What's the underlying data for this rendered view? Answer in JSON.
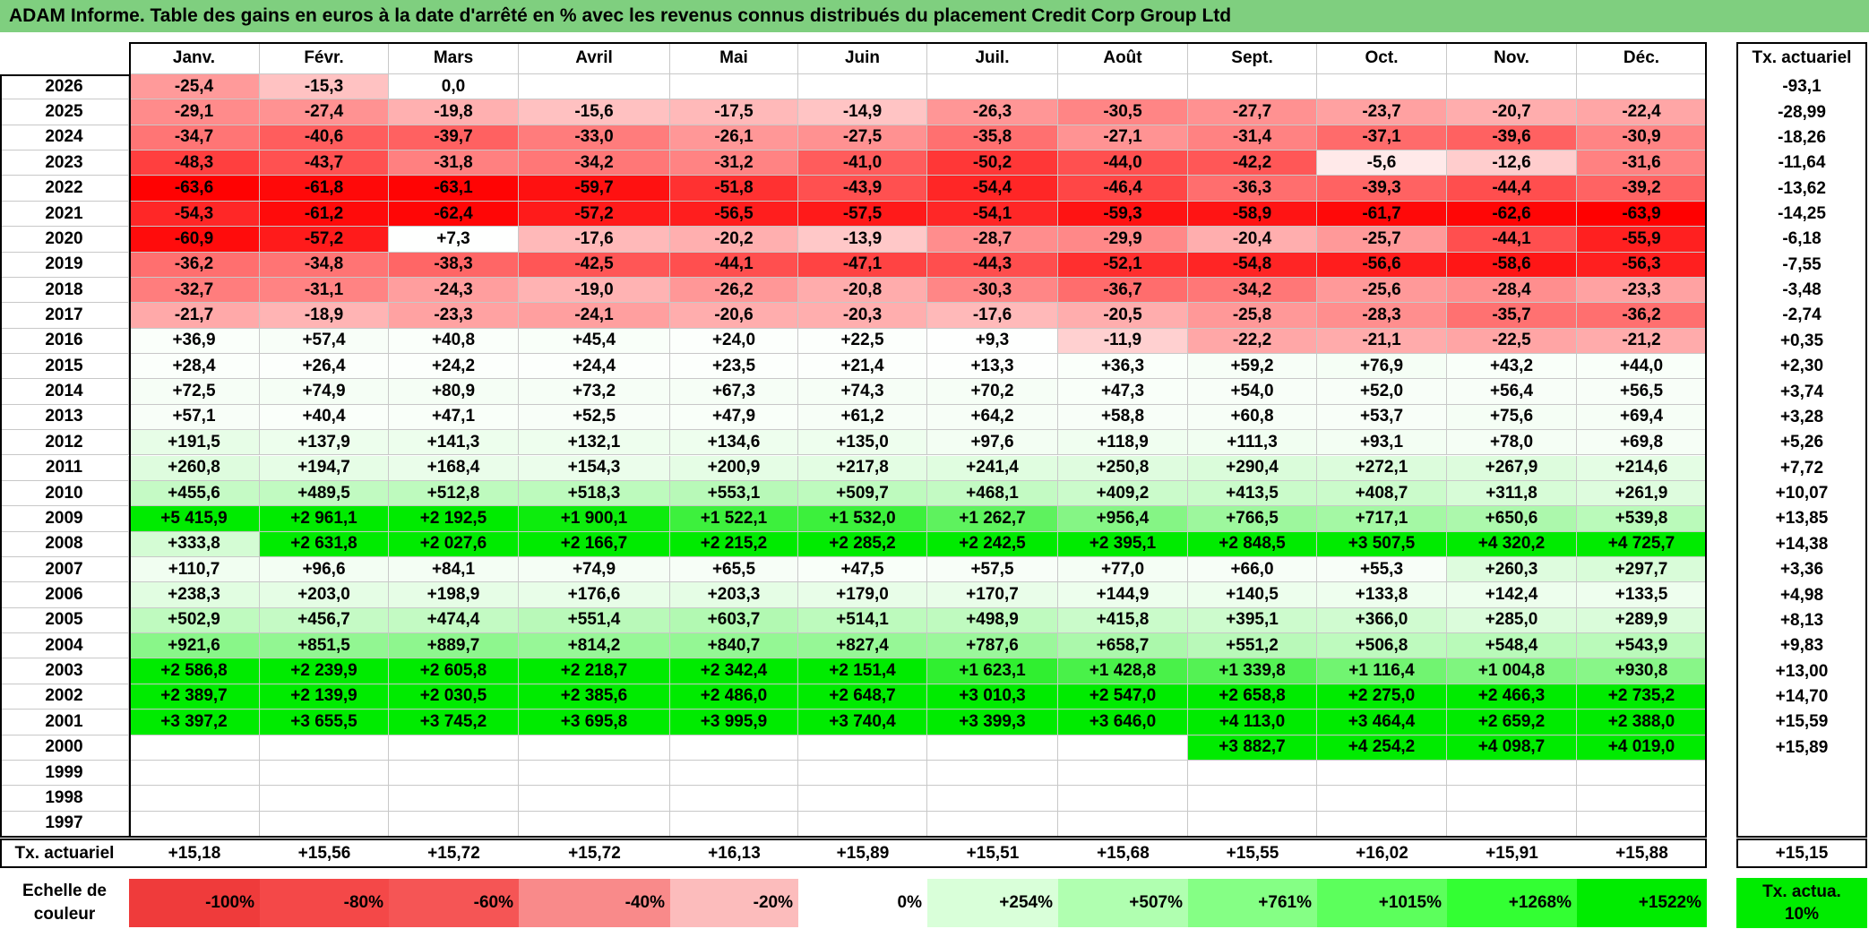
{
  "title": "ADAM Informe. Table des gains en euros à la date d'arrêté en % avec les revenus connus distribués du placement Credit Corp Group Ltd",
  "header": {
    "months": [
      "Janv.",
      "Févr.",
      "Mars",
      "Avril",
      "Mai",
      "Juin",
      "Juil.",
      "Août",
      "Sept.",
      "Oct.",
      "Nov.",
      "Déc."
    ],
    "rate_label": "Tx. actuariel"
  },
  "rows": [
    {
      "year": "2026",
      "values": [
        "-25,4",
        "-15,3",
        "0,0",
        null,
        null,
        null,
        null,
        null,
        null,
        null,
        null,
        null
      ],
      "rate": "-93,1"
    },
    {
      "year": "2025",
      "values": [
        "-29,1",
        "-27,4",
        "-19,8",
        "-15,6",
        "-17,5",
        "-14,9",
        "-26,3",
        "-30,5",
        "-27,7",
        "-23,7",
        "-20,7",
        "-22,4"
      ],
      "rate": "-28,99"
    },
    {
      "year": "2024",
      "values": [
        "-34,7",
        "-40,6",
        "-39,7",
        "-33,0",
        "-26,1",
        "-27,5",
        "-35,8",
        "-27,1",
        "-31,4",
        "-37,1",
        "-39,6",
        "-30,9"
      ],
      "rate": "-18,26"
    },
    {
      "year": "2023",
      "values": [
        "-48,3",
        "-43,7",
        "-31,8",
        "-34,2",
        "-31,2",
        "-41,0",
        "-50,2",
        "-44,0",
        "-42,2",
        "-5,6",
        "-12,6",
        "-31,6"
      ],
      "rate": "-11,64"
    },
    {
      "year": "2022",
      "values": [
        "-63,6",
        "-61,8",
        "-63,1",
        "-59,7",
        "-51,8",
        "-43,9",
        "-54,4",
        "-46,4",
        "-36,3",
        "-39,3",
        "-44,4",
        "-39,2"
      ],
      "rate": "-13,62"
    },
    {
      "year": "2021",
      "values": [
        "-54,3",
        "-61,2",
        "-62,4",
        "-57,2",
        "-56,5",
        "-57,5",
        "-54,1",
        "-59,3",
        "-58,9",
        "-61,7",
        "-62,6",
        "-63,9"
      ],
      "rate": "-14,25"
    },
    {
      "year": "2020",
      "values": [
        "-60,9",
        "-57,2",
        "+7,3",
        "-17,6",
        "-20,2",
        "-13,9",
        "-28,7",
        "-29,9",
        "-20,4",
        "-25,7",
        "-44,1",
        "-55,9"
      ],
      "rate": "-6,18"
    },
    {
      "year": "2019",
      "values": [
        "-36,2",
        "-34,8",
        "-38,3",
        "-42,5",
        "-44,1",
        "-47,1",
        "-44,3",
        "-52,1",
        "-54,8",
        "-56,6",
        "-58,6",
        "-56,3"
      ],
      "rate": "-7,55"
    },
    {
      "year": "2018",
      "values": [
        "-32,7",
        "-31,1",
        "-24,3",
        "-19,0",
        "-26,2",
        "-20,8",
        "-30,3",
        "-36,7",
        "-34,2",
        "-25,6",
        "-28,4",
        "-23,3"
      ],
      "rate": "-3,48"
    },
    {
      "year": "2017",
      "values": [
        "-21,7",
        "-18,9",
        "-23,3",
        "-24,1",
        "-20,6",
        "-20,3",
        "-17,6",
        "-20,5",
        "-25,8",
        "-28,3",
        "-35,7",
        "-36,2"
      ],
      "rate": "-2,74"
    },
    {
      "year": "2016",
      "values": [
        "+36,9",
        "+57,4",
        "+40,8",
        "+45,4",
        "+24,0",
        "+22,5",
        "+9,3",
        "-11,9",
        "-22,2",
        "-21,1",
        "-22,5",
        "-21,2"
      ],
      "rate": "+0,35"
    },
    {
      "year": "2015",
      "values": [
        "+28,4",
        "+26,4",
        "+24,2",
        "+24,4",
        "+23,5",
        "+21,4",
        "+13,3",
        "+36,3",
        "+59,2",
        "+76,9",
        "+43,2",
        "+44,0"
      ],
      "rate": "+2,30"
    },
    {
      "year": "2014",
      "values": [
        "+72,5",
        "+74,9",
        "+80,9",
        "+73,2",
        "+67,3",
        "+74,3",
        "+70,2",
        "+47,3",
        "+54,0",
        "+52,0",
        "+56,4",
        "+56,5"
      ],
      "rate": "+3,74"
    },
    {
      "year": "2013",
      "values": [
        "+57,1",
        "+40,4",
        "+47,1",
        "+52,5",
        "+47,9",
        "+61,2",
        "+64,2",
        "+58,8",
        "+60,8",
        "+53,7",
        "+75,6",
        "+69,4"
      ],
      "rate": "+3,28"
    },
    {
      "year": "2012",
      "values": [
        "+191,5",
        "+137,9",
        "+141,3",
        "+132,1",
        "+134,6",
        "+135,0",
        "+97,6",
        "+118,9",
        "+111,3",
        "+93,1",
        "+78,0",
        "+69,8"
      ],
      "rate": "+5,26"
    },
    {
      "year": "2011",
      "values": [
        "+260,8",
        "+194,7",
        "+168,4",
        "+154,3",
        "+200,9",
        "+217,8",
        "+241,4",
        "+250,8",
        "+290,4",
        "+272,1",
        "+267,9",
        "+214,6"
      ],
      "rate": "+7,72"
    },
    {
      "year": "2010",
      "values": [
        "+455,6",
        "+489,5",
        "+512,8",
        "+518,3",
        "+553,1",
        "+509,7",
        "+468,1",
        "+409,2",
        "+413,5",
        "+408,7",
        "+311,8",
        "+261,9"
      ],
      "rate": "+10,07"
    },
    {
      "year": "2009",
      "values": [
        "+5 415,9",
        "+2 961,1",
        "+2 192,5",
        "+1 900,1",
        "+1 522,1",
        "+1 532,0",
        "+1 262,7",
        "+956,4",
        "+766,5",
        "+717,1",
        "+650,6",
        "+539,8"
      ],
      "rate": "+13,85"
    },
    {
      "year": "2008",
      "values": [
        "+333,8",
        "+2 631,8",
        "+2 027,6",
        "+2 166,7",
        "+2 215,2",
        "+2 285,2",
        "+2 242,5",
        "+2 395,1",
        "+2 848,5",
        "+3 507,5",
        "+4 320,2",
        "+4 725,7"
      ],
      "rate": "+14,38"
    },
    {
      "year": "2007",
      "values": [
        "+110,7",
        "+96,6",
        "+84,1",
        "+74,9",
        "+65,5",
        "+47,5",
        "+57,5",
        "+77,0",
        "+66,0",
        "+55,3",
        "+260,3",
        "+297,7"
      ],
      "rate": "+3,36"
    },
    {
      "year": "2006",
      "values": [
        "+238,3",
        "+203,0",
        "+198,9",
        "+176,6",
        "+203,3",
        "+179,0",
        "+170,7",
        "+144,9",
        "+140,5",
        "+133,8",
        "+142,4",
        "+133,5"
      ],
      "rate": "+4,98"
    },
    {
      "year": "2005",
      "values": [
        "+502,9",
        "+456,7",
        "+474,4",
        "+551,4",
        "+603,7",
        "+514,1",
        "+498,9",
        "+415,8",
        "+395,1",
        "+366,0",
        "+285,0",
        "+289,9"
      ],
      "rate": "+8,13"
    },
    {
      "year": "2004",
      "values": [
        "+921,6",
        "+851,5",
        "+889,7",
        "+814,2",
        "+840,7",
        "+827,4",
        "+787,6",
        "+658,7",
        "+551,2",
        "+506,8",
        "+548,4",
        "+543,9"
      ],
      "rate": "+9,83"
    },
    {
      "year": "2003",
      "values": [
        "+2 586,8",
        "+2 239,9",
        "+2 605,8",
        "+2 218,7",
        "+2 342,4",
        "+2 151,4",
        "+1 623,1",
        "+1 428,8",
        "+1 339,8",
        "+1 116,4",
        "+1 004,8",
        "+930,8"
      ],
      "rate": "+13,00"
    },
    {
      "year": "2002",
      "values": [
        "+2 389,7",
        "+2 139,9",
        "+2 030,5",
        "+2 385,6",
        "+2 486,0",
        "+2 648,7",
        "+3 010,3",
        "+2 547,0",
        "+2 658,8",
        "+2 275,0",
        "+2 466,3",
        "+2 735,2"
      ],
      "rate": "+14,70"
    },
    {
      "year": "2001",
      "values": [
        "+3 397,2",
        "+3 655,5",
        "+3 745,2",
        "+3 695,8",
        "+3 995,9",
        "+3 740,4",
        "+3 399,3",
        "+3 646,0",
        "+4 113,0",
        "+3 464,4",
        "+2 659,2",
        "+2 388,0"
      ],
      "rate": "+15,59"
    },
    {
      "year": "2000",
      "values": [
        null,
        null,
        null,
        null,
        null,
        null,
        null,
        null,
        "+3 882,7",
        "+4 254,2",
        "+4 098,7",
        "+4 019,0"
      ],
      "rate": "+15,89"
    },
    {
      "year": "1999",
      "values": [
        null,
        null,
        null,
        null,
        null,
        null,
        null,
        null,
        null,
        null,
        null,
        null
      ],
      "rate": null
    },
    {
      "year": "1998",
      "values": [
        null,
        null,
        null,
        null,
        null,
        null,
        null,
        null,
        null,
        null,
        null,
        null
      ],
      "rate": null
    },
    {
      "year": "1997",
      "values": [
        null,
        null,
        null,
        null,
        null,
        null,
        null,
        null,
        null,
        null,
        null,
        null
      ],
      "rate": null
    }
  ],
  "footer": {
    "label": "Tx. actuariel",
    "values": [
      "+15,18",
      "+15,56",
      "+15,72",
      "+15,72",
      "+16,13",
      "+15,89",
      "+15,51",
      "+15,68",
      "+15,55",
      "+16,02",
      "+15,91",
      "+15,88"
    ],
    "rate": "+15,15"
  },
  "scale": {
    "label": "Echelle de couleur",
    "steps": [
      "-100%",
      "-80%",
      "-60%",
      "-40%",
      "-20%",
      "0%",
      "+254%",
      "+507%",
      "+761%",
      "+1015%",
      "+1268%",
      "+1522%"
    ],
    "colors": [
      "#ef3b3b",
      "#f44848",
      "#f55555",
      "#f98a8a",
      "#fcbcbc",
      "#ffffff",
      "#d9ffd9",
      "#b0ffb0",
      "#85ff85",
      "#5cff5c",
      "#33ff33",
      "#00ec00"
    ],
    "rate_label": "Tx. actua. 10%",
    "rate_color": "#00ec00"
  }
}
